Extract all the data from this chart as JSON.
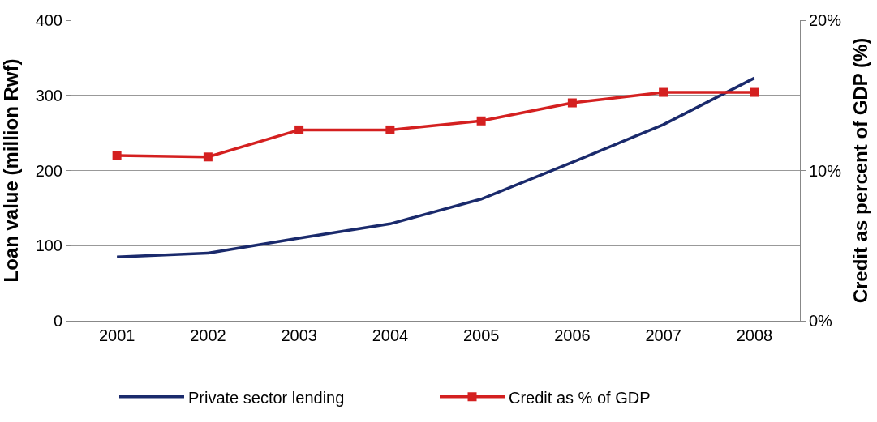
{
  "chart_data": {
    "type": "line",
    "ylabel": "Loan value (million Rwf)",
    "y2label": "Credit as percent of GDP (%)",
    "categories": [
      "2001",
      "2002",
      "2003",
      "2004",
      "2005",
      "2006",
      "2007",
      "2008"
    ],
    "series": [
      {
        "name": "Private sector lending",
        "color": "#1a2a6c",
        "values": [
          85,
          90,
          110,
          129,
          162,
          211,
          261,
          323
        ],
        "marker": "none"
      },
      {
        "name": "Credit as % of GDP",
        "color": "#d42020",
        "axis": "y2",
        "values": [
          11.0,
          10.9,
          12.7,
          12.7,
          13.3,
          14.5,
          15.2,
          15.2
        ],
        "marker": "square"
      }
    ],
    "ylim": [
      0,
      400
    ],
    "yticks": [
      0,
      100,
      200,
      300,
      400
    ],
    "y2lim": [
      0,
      20
    ],
    "y2ticks": [
      {
        "value": 0,
        "label": "0%"
      },
      {
        "value": 10,
        "label": "10%"
      },
      {
        "value": 20,
        "label": "20%"
      }
    ],
    "grid": "y",
    "legend": "bottom",
    "line_style": "solid"
  }
}
